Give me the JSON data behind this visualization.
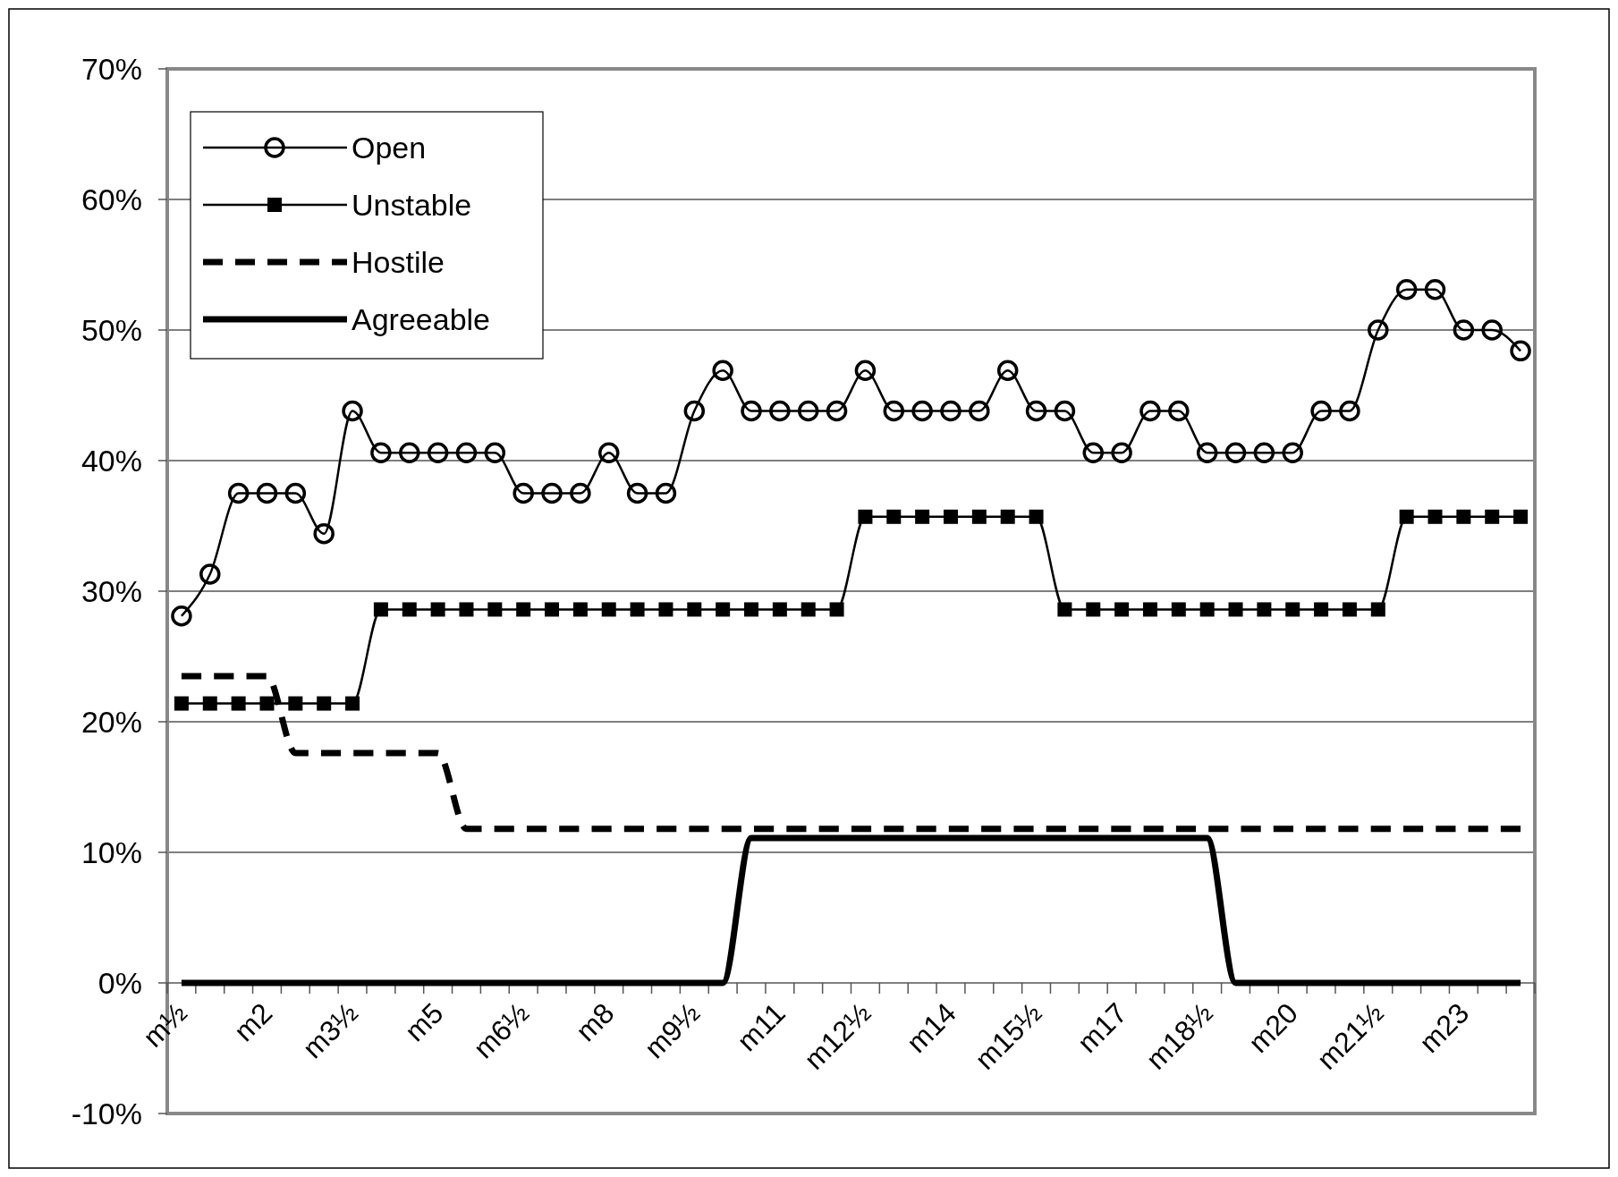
{
  "chart_data": {
    "type": "line",
    "categories": [
      "m½",
      null,
      null,
      "m2",
      null,
      null,
      "m3½",
      null,
      null,
      "m5",
      null,
      null,
      "m6½",
      null,
      null,
      "m8",
      null,
      null,
      "m9½",
      null,
      null,
      "m11",
      null,
      null,
      "m12½",
      null,
      null,
      "m14",
      null,
      null,
      "m15½",
      null,
      null,
      "m17",
      null,
      null,
      "m18½",
      null,
      null,
      "m20",
      null,
      null,
      "m21½",
      null,
      null,
      "m23",
      null,
      null
    ],
    "series": [
      {
        "name": "Open",
        "color": "#000000",
        "marker": "circle",
        "line_style": "solid",
        "values": [
          28.1,
          31.3,
          37.5,
          37.5,
          37.5,
          34.4,
          43.8,
          40.6,
          40.6,
          40.6,
          40.6,
          40.6,
          37.5,
          37.5,
          37.5,
          40.6,
          37.5,
          37.5,
          43.8,
          46.9,
          43.8,
          43.8,
          43.8,
          43.8,
          46.9,
          43.8,
          43.8,
          43.8,
          43.8,
          46.9,
          43.8,
          43.8,
          40.6,
          40.6,
          43.8,
          43.8,
          40.6,
          40.6,
          40.6,
          40.6,
          43.8,
          43.8,
          50.0,
          53.1,
          53.1,
          50.0,
          50.0,
          48.4
        ]
      },
      {
        "name": "Unstable",
        "color": "#000000",
        "marker": "square",
        "line_style": "solid",
        "values": [
          21.4,
          21.4,
          21.4,
          21.4,
          21.4,
          21.4,
          21.4,
          28.6,
          28.6,
          28.6,
          28.6,
          28.6,
          28.6,
          28.6,
          28.6,
          28.6,
          28.6,
          28.6,
          28.6,
          28.6,
          28.6,
          28.6,
          28.6,
          28.6,
          35.7,
          35.7,
          35.7,
          35.7,
          35.7,
          35.7,
          35.7,
          28.6,
          28.6,
          28.6,
          28.6,
          28.6,
          28.6,
          28.6,
          28.6,
          28.6,
          28.6,
          28.6,
          28.6,
          35.7,
          35.7,
          35.7,
          35.7,
          35.7
        ]
      },
      {
        "name": "Hostile",
        "color": "#000000",
        "marker": "none",
        "line_style": "dashed",
        "values": [
          23.5,
          23.5,
          23.5,
          23.5,
          17.6,
          17.6,
          17.6,
          17.6,
          17.6,
          17.6,
          11.8,
          11.8,
          11.8,
          11.8,
          11.8,
          11.8,
          11.8,
          11.8,
          11.8,
          11.8,
          11.8,
          11.8,
          11.8,
          11.8,
          11.8,
          11.8,
          11.8,
          11.8,
          11.8,
          11.8,
          11.8,
          11.8,
          11.8,
          11.8,
          11.8,
          11.8,
          11.8,
          11.8,
          11.8,
          11.8,
          11.8,
          11.8,
          11.8,
          11.8,
          11.8,
          11.8,
          11.8,
          11.8
        ]
      },
      {
        "name": "Agreeable",
        "color": "#000000",
        "marker": "none",
        "line_style": "solid",
        "values": [
          0,
          0,
          0,
          0,
          0,
          0,
          0,
          0,
          0,
          0,
          0,
          0,
          0,
          0,
          0,
          0,
          0,
          0,
          0,
          0,
          11.1,
          11.1,
          11.1,
          11.1,
          11.1,
          11.1,
          11.1,
          11.1,
          11.1,
          11.1,
          11.1,
          11.1,
          11.1,
          11.1,
          11.1,
          11.1,
          11.1,
          0,
          0,
          0,
          0,
          0,
          0,
          0,
          0,
          0,
          0,
          0
        ]
      }
    ],
    "ylim": [
      -10,
      70
    ],
    "yticks": [
      {
        "value": -10,
        "label": "-10%"
      },
      {
        "value": 0,
        "label": "0%"
      },
      {
        "value": 10,
        "label": "10%"
      },
      {
        "value": 20,
        "label": "20%"
      },
      {
        "value": 30,
        "label": "30%"
      },
      {
        "value": 40,
        "label": "40%"
      },
      {
        "value": 50,
        "label": "50%"
      },
      {
        "value": 60,
        "label": "60%"
      },
      {
        "value": 70,
        "label": "70%"
      }
    ],
    "grid": "y",
    "legend": "top left"
  }
}
